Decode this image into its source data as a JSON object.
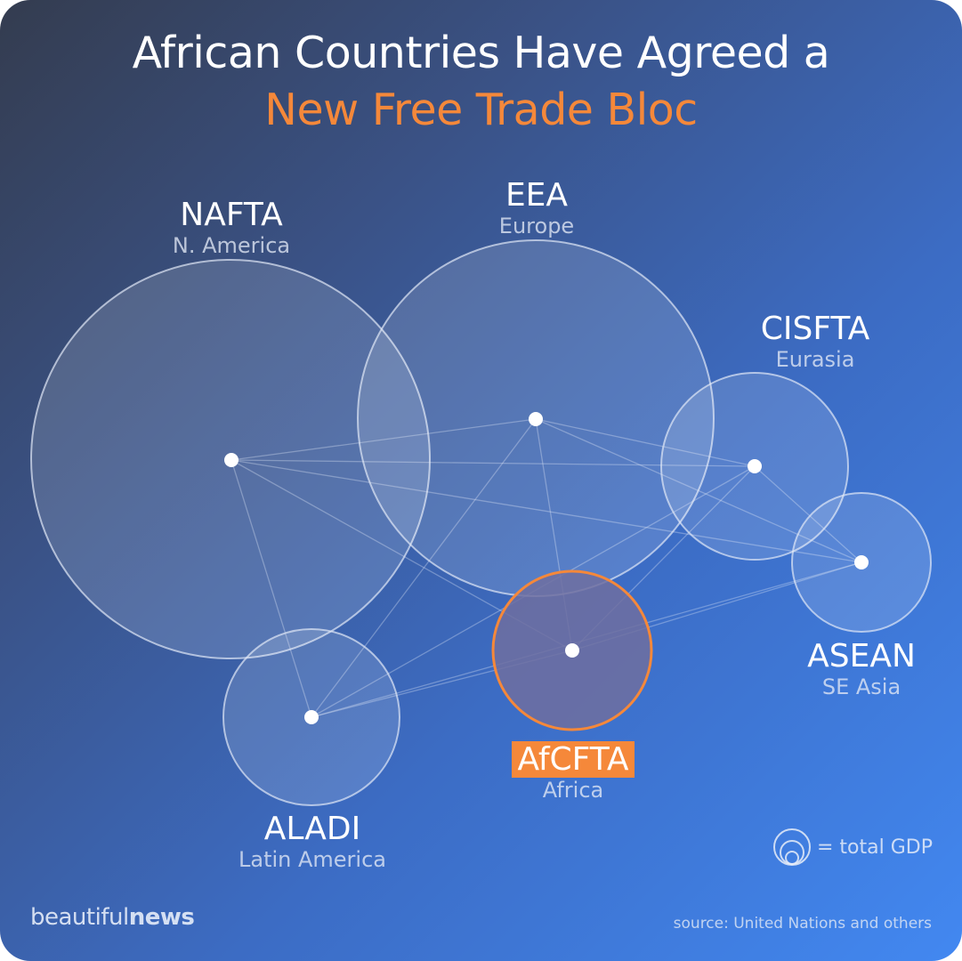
{
  "title": {
    "line1": "African Countries Have Agreed a",
    "line2": "New Free Trade Bloc"
  },
  "blocs": [
    {
      "id": "nafta",
      "name": "NAFTA",
      "region": "N. America"
    },
    {
      "id": "eea",
      "name": "EEA",
      "region": "Europe"
    },
    {
      "id": "cisfta",
      "name": "CISFTA",
      "region": "Eurasia"
    },
    {
      "id": "asean",
      "name": "ASEAN",
      "region": "SE Asia"
    },
    {
      "id": "afcfta",
      "name": "AfCFTA",
      "region": "Africa"
    },
    {
      "id": "aladi",
      "name": "ALADI",
      "region": "Latin America"
    }
  ],
  "legend": {
    "icon": "nested-circles-icon",
    "text": "= total GDP"
  },
  "brand": {
    "light": "beautiful",
    "bold": "news"
  },
  "source": "source: United Nations and others",
  "colors": {
    "accent": "#f5883a",
    "circle_fill": "#ffffff",
    "circle_stroke": "#dfe6f4"
  }
}
